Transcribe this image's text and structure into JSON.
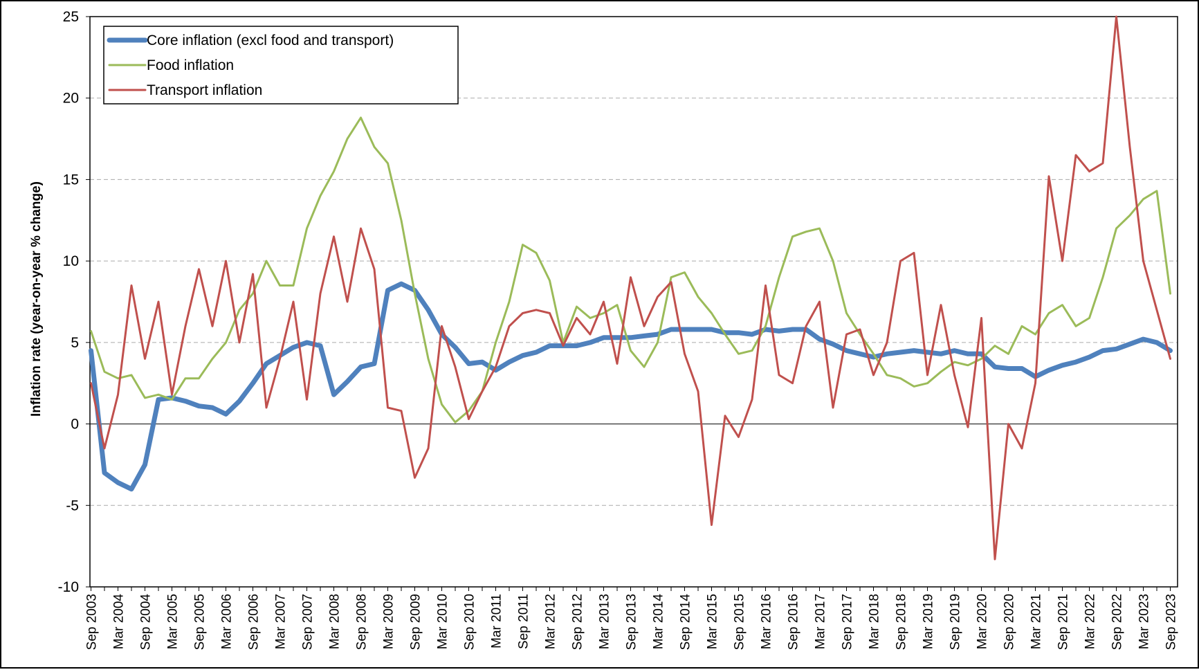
{
  "chart_data": {
    "type": "line",
    "y_label": "Inflation rate (year-on-year % change)",
    "categories": [
      "Sep 2003",
      null,
      "Mar 2004",
      null,
      "Sep 2004",
      null,
      "Mar 2005",
      null,
      "Sep 2005",
      null,
      "Mar 2006",
      null,
      "Sep 2006",
      null,
      "Mar 2007",
      null,
      "Sep 2007",
      null,
      "Mar 2008",
      null,
      "Sep 2008",
      null,
      "Mar 2009",
      null,
      "Sep 2009",
      null,
      "Mar 2010",
      null,
      "Sep 2010",
      null,
      "Mar 2011",
      null,
      "Sep 2011",
      null,
      "Mar 2012",
      null,
      "Sep 2012",
      null,
      "Mar 2013",
      null,
      "Sep 2013",
      null,
      "Mar 2014",
      null,
      "Sep 2014",
      null,
      "Mar 2015",
      null,
      "Sep 2015",
      null,
      "Mar 2016",
      null,
      "Sep 2016",
      null,
      "Mar 2017",
      null,
      "Sep 2017",
      null,
      "Mar 2018",
      null,
      "Sep 2018",
      null,
      "Mar 2019",
      null,
      "Sep 2019",
      null,
      "Mar 2020",
      null,
      "Sep 2020",
      null,
      "Mar 2021",
      null,
      "Sep 2021",
      null,
      "Mar 2022",
      null,
      "Sep 2022",
      null,
      "Mar 2023",
      null,
      "Sep 2023"
    ],
    "series": [
      {
        "name": "Core inflation (excl food and transport)",
        "color": "#4f81bd",
        "values": [
          4.5,
          -3.0,
          -3.6,
          -4.0,
          -2.5,
          1.5,
          1.6,
          1.4,
          1.1,
          1.0,
          0.6,
          1.4,
          2.5,
          3.7,
          4.2,
          4.7,
          5.0,
          4.8,
          1.8,
          2.6,
          3.5,
          3.7,
          8.2,
          8.6,
          8.2,
          7.0,
          5.5,
          4.7,
          3.7,
          3.8,
          3.3,
          3.8,
          4.2,
          4.4,
          4.8,
          4.8,
          4.8,
          5.0,
          5.3,
          5.3,
          5.3,
          5.4,
          5.5,
          5.8,
          5.8,
          5.8,
          5.8,
          5.6,
          5.6,
          5.5,
          5.8,
          5.7,
          5.8,
          5.8,
          5.2,
          4.9,
          4.5,
          4.3,
          4.1,
          4.3,
          4.4,
          4.5,
          4.4,
          4.3,
          4.5,
          4.3,
          4.3,
          3.5,
          3.4,
          3.4,
          2.9,
          3.3,
          3.6,
          3.8,
          4.1,
          4.5,
          4.6,
          4.9,
          5.2,
          5.0,
          4.5
        ]
      },
      {
        "name": "Food inflation",
        "color": "#9bbb59",
        "values": [
          5.7,
          3.2,
          2.8,
          3.0,
          1.6,
          1.8,
          1.5,
          2.8,
          2.8,
          4.0,
          5.0,
          7.0,
          8.0,
          10.0,
          8.5,
          8.5,
          12.0,
          14.0,
          15.5,
          17.5,
          18.8,
          17.0,
          16.0,
          12.5,
          8.0,
          4.0,
          1.2,
          0.1,
          0.8,
          2.0,
          5.0,
          7.5,
          11.0,
          10.5,
          8.8,
          5.0,
          7.2,
          6.5,
          6.8,
          7.3,
          4.5,
          3.5,
          5.0,
          9.0,
          9.3,
          7.8,
          6.8,
          5.5,
          4.3,
          4.5,
          6.0,
          9.0,
          11.5,
          11.8,
          12.0,
          10.0,
          6.8,
          5.5,
          4.3,
          3.0,
          2.8,
          2.3,
          2.5,
          3.2,
          3.8,
          3.6,
          4.0,
          4.8,
          4.3,
          6.0,
          5.5,
          6.8,
          7.3,
          6.0,
          6.5,
          9.0,
          12.0,
          12.8,
          13.8,
          14.3,
          8.0
        ]
      },
      {
        "name": "Transport inflation",
        "color": "#c0504d",
        "values": [
          2.5,
          -1.5,
          1.8,
          8.5,
          4.0,
          7.5,
          1.8,
          6.0,
          9.5,
          6.0,
          10.0,
          5.0,
          9.2,
          1.0,
          4.0,
          7.5,
          1.5,
          8.0,
          11.5,
          7.5,
          12.0,
          9.5,
          1.0,
          0.8,
          -3.3,
          -1.5,
          6.0,
          3.5,
          0.3,
          2.0,
          3.5,
          6.0,
          6.8,
          7.0,
          6.8,
          4.8,
          6.5,
          5.5,
          7.5,
          3.7,
          9.0,
          6.0,
          7.8,
          8.7,
          4.3,
          2.0,
          -6.2,
          0.5,
          -0.8,
          1.5,
          8.5,
          3.0,
          2.5,
          6.0,
          7.5,
          1.0,
          5.5,
          5.8,
          3.0,
          5.0,
          10.0,
          10.5,
          3.0,
          7.3,
          3.0,
          -0.2,
          6.5,
          -8.3,
          0.0,
          -1.5,
          2.5,
          15.2,
          10.0,
          16.5,
          15.5,
          16.0,
          25.0,
          17.0,
          10.0,
          7.0,
          4.0
        ]
      }
    ],
    "ylim": [
      -10,
      25
    ],
    "yticks": [
      -10,
      -5,
      0,
      5,
      10,
      15,
      20,
      25
    ],
    "grid": true,
    "legend": "top-left"
  }
}
